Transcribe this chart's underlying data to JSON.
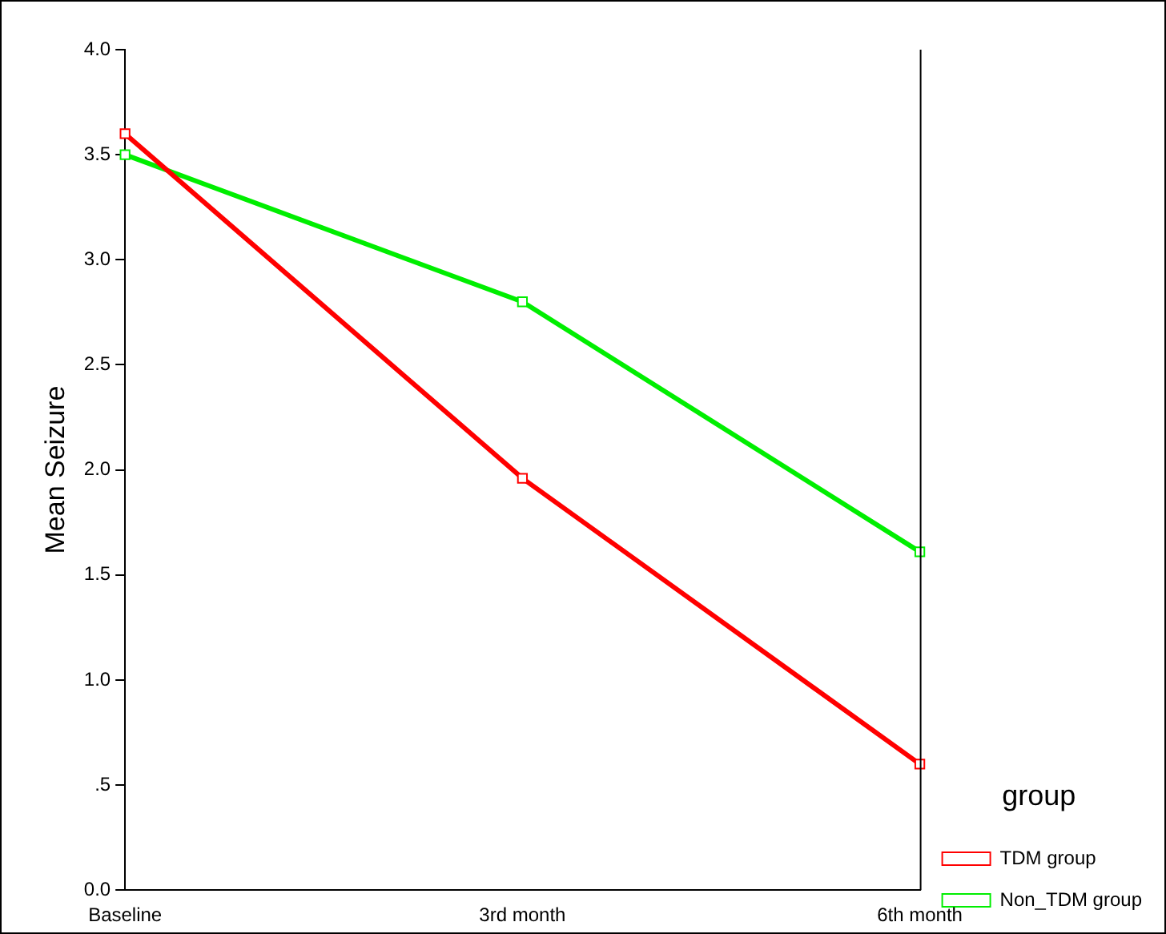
{
  "chart_data": {
    "type": "line",
    "ylabel": "Mean Seizure",
    "legend_title": "group",
    "categories": [
      "Baseline",
      "3rd month",
      "6th month"
    ],
    "series": [
      {
        "name": "TDM group",
        "color": "#ff0000",
        "values": [
          3.6,
          1.96,
          0.6
        ]
      },
      {
        "name": "Non_TDM group",
        "color": "#00ee00",
        "values": [
          3.5,
          2.8,
          1.61
        ]
      }
    ],
    "ylim": [
      0,
      4
    ],
    "yticks": [
      {
        "value": 0,
        "label": "0.0"
      },
      {
        "value": 0.5,
        "label": ".5"
      },
      {
        "value": 1,
        "label": "1.0"
      },
      {
        "value": 1.5,
        "label": "1.5"
      },
      {
        "value": 2,
        "label": "2.0"
      },
      {
        "value": 2.5,
        "label": "2.5"
      },
      {
        "value": 3,
        "label": "3.0"
      },
      {
        "value": 3.5,
        "label": "3.5"
      },
      {
        "value": 4,
        "label": "4.0"
      }
    ],
    "grid": false,
    "legend": "bottom right",
    "marker": "square",
    "line_style": "solid"
  }
}
